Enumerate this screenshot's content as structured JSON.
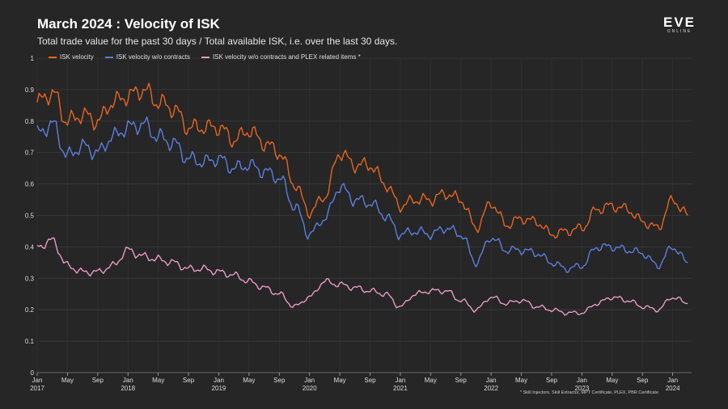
{
  "header": {
    "title": "March 2024 : Velocity of ISK",
    "subtitle": "Total trade value for the past 30 days / Total available ISK, i.e. over the last 30 days.",
    "logo_word": "EVE",
    "logo_sub": "ONLINE"
  },
  "footnote": "* Skill Injectors, Skill Extractor, MPT Certificate, PLEX, PBR Certificate",
  "chart_data": {
    "type": "line",
    "xlabel": "",
    "ylabel": "",
    "ylim": [
      0,
      1
    ],
    "y_ticks": [
      "0",
      "0.1",
      "0.2",
      "0.3",
      "0.4",
      "0.5",
      "0.6",
      "0.7",
      "0.8",
      "0.9",
      "1"
    ],
    "x_ticks": [
      "Jan\n2017",
      "May",
      "Sep",
      "Jan\n2018",
      "May",
      "Sep",
      "Jan\n2019",
      "May",
      "Sep",
      "Jan\n2020",
      "May",
      "Sep",
      "Jan\n2021",
      "May",
      "Sep",
      "Jan\n2022",
      "May",
      "Sep",
      "Jan\n2023",
      "May",
      "Sep",
      "Jan\n2024"
    ],
    "grid": true,
    "legend_position": "top-left",
    "x": [
      "2017-01",
      "2017-03",
      "2017-05",
      "2017-07",
      "2017-09",
      "2017-11",
      "2018-01",
      "2018-03",
      "2018-05",
      "2018-07",
      "2018-09",
      "2018-11",
      "2019-01",
      "2019-03",
      "2019-05",
      "2019-07",
      "2019-09",
      "2019-11",
      "2020-01",
      "2020-03",
      "2020-05",
      "2020-07",
      "2020-09",
      "2020-11",
      "2021-01",
      "2021-03",
      "2021-05",
      "2021-07",
      "2021-09",
      "2021-11",
      "2022-01",
      "2022-03",
      "2022-05",
      "2022-07",
      "2022-09",
      "2022-11",
      "2023-01",
      "2023-03",
      "2023-05",
      "2023-07",
      "2023-09",
      "2023-11",
      "2024-01",
      "2024-03"
    ],
    "series": [
      {
        "name": "ISK velocity",
        "color": "#e8651f",
        "values": [
          0.86,
          0.89,
          0.8,
          0.82,
          0.8,
          0.86,
          0.88,
          0.9,
          0.86,
          0.84,
          0.78,
          0.78,
          0.78,
          0.74,
          0.77,
          0.73,
          0.7,
          0.6,
          0.51,
          0.56,
          0.7,
          0.66,
          0.66,
          0.6,
          0.53,
          0.55,
          0.55,
          0.57,
          0.55,
          0.46,
          0.54,
          0.47,
          0.49,
          0.48,
          0.44,
          0.45,
          0.46,
          0.52,
          0.53,
          0.52,
          0.48,
          0.46,
          0.55,
          0.5
        ]
      },
      {
        "name": "ISK velocity w/o contracts",
        "color": "#5a7fe0",
        "values": [
          0.76,
          0.79,
          0.69,
          0.72,
          0.7,
          0.75,
          0.78,
          0.79,
          0.75,
          0.73,
          0.68,
          0.67,
          0.68,
          0.65,
          0.66,
          0.64,
          0.62,
          0.53,
          0.44,
          0.49,
          0.59,
          0.55,
          0.54,
          0.5,
          0.44,
          0.45,
          0.44,
          0.46,
          0.44,
          0.35,
          0.43,
          0.39,
          0.39,
          0.38,
          0.35,
          0.33,
          0.34,
          0.4,
          0.4,
          0.39,
          0.38,
          0.34,
          0.4,
          0.35
        ]
      },
      {
        "name": "ISK velocity w/o contracts and PLEX related items *",
        "color": "#e89bc0",
        "values": [
          0.4,
          0.42,
          0.34,
          0.32,
          0.32,
          0.34,
          0.39,
          0.37,
          0.36,
          0.35,
          0.33,
          0.33,
          0.32,
          0.31,
          0.29,
          0.27,
          0.25,
          0.21,
          0.24,
          0.29,
          0.28,
          0.27,
          0.26,
          0.25,
          0.21,
          0.25,
          0.26,
          0.26,
          0.23,
          0.2,
          0.24,
          0.22,
          0.23,
          0.21,
          0.2,
          0.19,
          0.19,
          0.22,
          0.24,
          0.23,
          0.21,
          0.2,
          0.24,
          0.22
        ]
      }
    ]
  }
}
